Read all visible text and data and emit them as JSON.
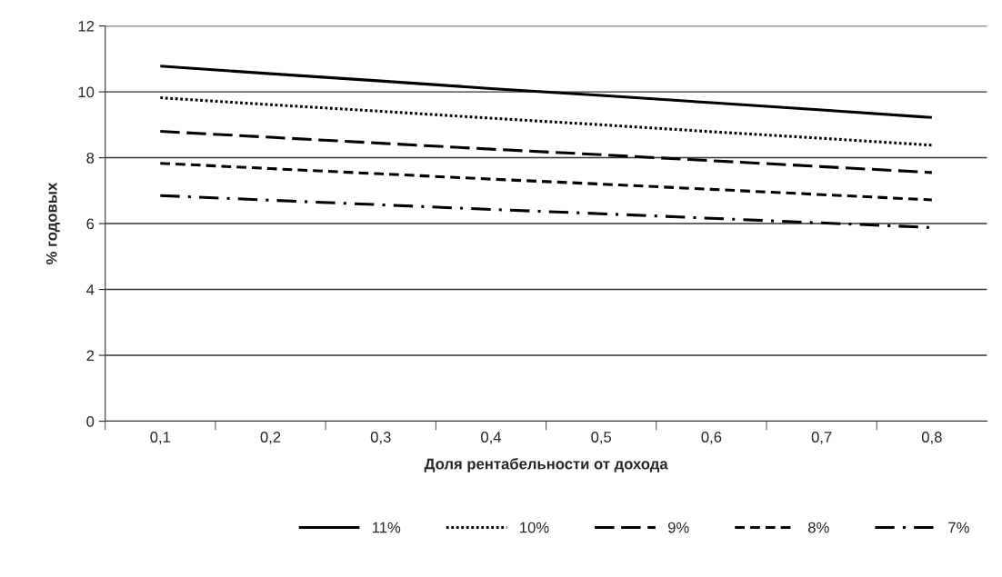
{
  "chart_data": {
    "type": "line",
    "xlabel": "Доля рентабельности от дохода",
    "ylabel": "% годовых",
    "categories": [
      "0,1",
      "0,2",
      "0,3",
      "0,4",
      "0,5",
      "0,6",
      "0,7",
      "0,8"
    ],
    "ylim": [
      0,
      12
    ],
    "yticks": [
      0,
      2,
      4,
      6,
      8,
      10,
      12
    ],
    "grid": "y",
    "legend": "bottom",
    "marker": "none",
    "series": [
      {
        "name": "11%",
        "color": "#000000",
        "line_style": "solid",
        "values": [
          10.78,
          10.55,
          10.33,
          10.1,
          9.89,
          9.67,
          9.45,
          9.22
        ]
      },
      {
        "name": "10%",
        "color": "#000000",
        "line_style": "dotted",
        "values": [
          9.82,
          9.61,
          9.41,
          9.2,
          9.0,
          8.79,
          8.59,
          8.38
        ]
      },
      {
        "name": "9%",
        "color": "#000000",
        "line_style": "longdash",
        "values": [
          8.8,
          8.62,
          8.44,
          8.26,
          8.09,
          7.91,
          7.73,
          7.55
        ]
      },
      {
        "name": "8%",
        "color": "#000000",
        "line_style": "dashed",
        "values": [
          7.83,
          7.67,
          7.51,
          7.35,
          7.2,
          7.04,
          6.88,
          6.72
        ]
      },
      {
        "name": "7%",
        "color": "#000000",
        "line_style": "dashdot",
        "values": [
          6.85,
          6.71,
          6.57,
          6.43,
          6.3,
          6.16,
          6.02,
          5.88
        ]
      }
    ]
  }
}
